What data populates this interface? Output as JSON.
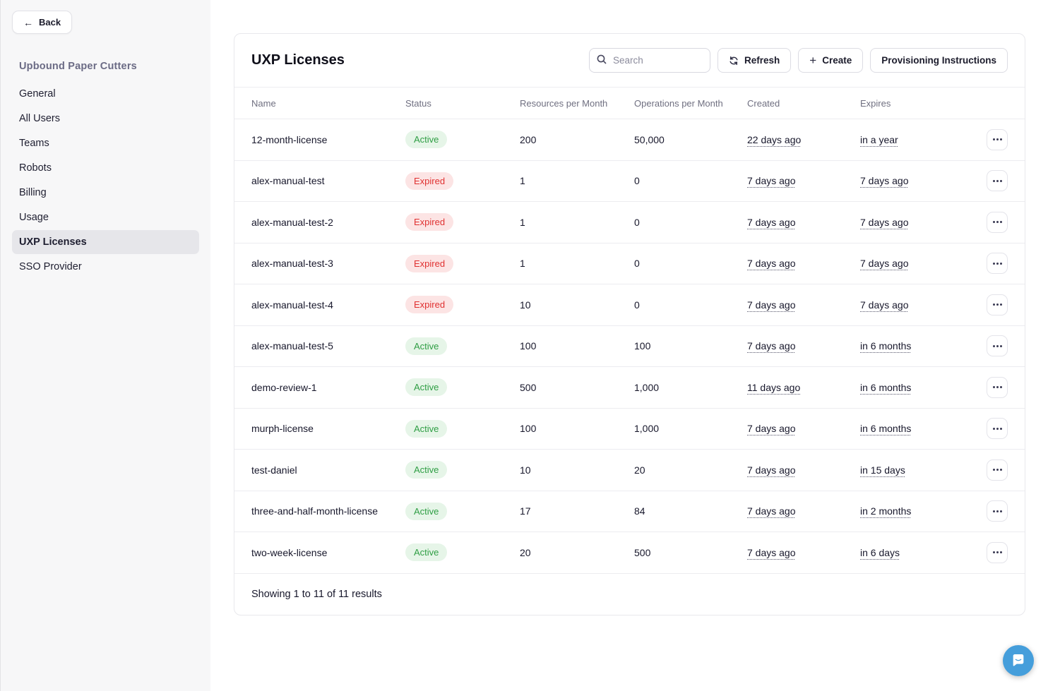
{
  "sidebar": {
    "back_label": "Back",
    "org_title": "Upbound Paper Cutters",
    "items": [
      {
        "label": "General",
        "active": false
      },
      {
        "label": "All Users",
        "active": false
      },
      {
        "label": "Teams",
        "active": false
      },
      {
        "label": "Robots",
        "active": false
      },
      {
        "label": "Billing",
        "active": false
      },
      {
        "label": "Usage",
        "active": false
      },
      {
        "label": "UXP Licenses",
        "active": true
      },
      {
        "label": "SSO Provider",
        "active": false
      }
    ]
  },
  "header": {
    "title": "UXP Licenses",
    "search_placeholder": "Search",
    "refresh_label": "Refresh",
    "create_label": "Create",
    "provisioning_label": "Provisioning Instructions"
  },
  "table": {
    "columns": [
      "Name",
      "Status",
      "Resources per Month",
      "Operations per Month",
      "Created",
      "Expires"
    ],
    "rows": [
      {
        "name": "12-month-license",
        "status": "Active",
        "resources": "200",
        "operations": "50,000",
        "created": "22 days ago",
        "expires": "in a year"
      },
      {
        "name": "alex-manual-test",
        "status": "Expired",
        "resources": "1",
        "operations": "0",
        "created": "7 days ago",
        "expires": "7 days ago"
      },
      {
        "name": "alex-manual-test-2",
        "status": "Expired",
        "resources": "1",
        "operations": "0",
        "created": "7 days ago",
        "expires": "7 days ago"
      },
      {
        "name": "alex-manual-test-3",
        "status": "Expired",
        "resources": "1",
        "operations": "0",
        "created": "7 days ago",
        "expires": "7 days ago"
      },
      {
        "name": "alex-manual-test-4",
        "status": "Expired",
        "resources": "10",
        "operations": "0",
        "created": "7 days ago",
        "expires": "7 days ago"
      },
      {
        "name": "alex-manual-test-5",
        "status": "Active",
        "resources": "100",
        "operations": "100",
        "created": "7 days ago",
        "expires": "in 6 months"
      },
      {
        "name": "demo-review-1",
        "status": "Active",
        "resources": "500",
        "operations": "1,000",
        "created": "11 days ago",
        "expires": "in 6 months"
      },
      {
        "name": "murph-license",
        "status": "Active",
        "resources": "100",
        "operations": "1,000",
        "created": "7 days ago",
        "expires": "in 6 months"
      },
      {
        "name": "test-daniel",
        "status": "Active",
        "resources": "10",
        "operations": "20",
        "created": "7 days ago",
        "expires": "in 15 days"
      },
      {
        "name": "three-and-half-month-license",
        "status": "Active",
        "resources": "17",
        "operations": "84",
        "created": "7 days ago",
        "expires": "in 2 months"
      },
      {
        "name": "two-week-license",
        "status": "Active",
        "resources": "20",
        "operations": "500",
        "created": "7 days ago",
        "expires": "in 6 days"
      }
    ],
    "footer": "Showing 1 to 11 of 11 results"
  },
  "colors": {
    "active_badge_bg": "#e6f5e8",
    "active_badge_text": "#2f9e44",
    "expired_badge_bg": "#fce4e4",
    "expired_badge_text": "#e03131",
    "chat_button": "#459edb",
    "sidebar_bg": "#f7f7f8",
    "selected_item_bg": "#e6e6ea"
  }
}
